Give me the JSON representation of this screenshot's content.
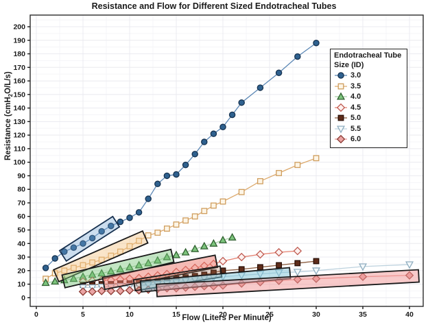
{
  "chart_data": {
    "type": "line",
    "title": "Resistance and Flow for Different Sized Endotracheal Tubes",
    "xlabel": "Flow (Liters Per Minute)",
    "ylabel": "Resistance (cmH2O/L/s)",
    "ylabel_pre": "Resistance (cmH",
    "ylabel_sub": "2",
    "ylabel_post": "O/L/s)",
    "xlim": [
      -0.66,
      41.47
    ],
    "ylim": [
      -6.4,
      208.6
    ],
    "xticks": [
      0,
      5,
      10,
      15,
      20,
      25,
      30,
      35,
      40
    ],
    "yticks": [
      0,
      10,
      20,
      30,
      40,
      50,
      60,
      70,
      80,
      90,
      100,
      110,
      120,
      130,
      140,
      150,
      160,
      170,
      180,
      190,
      200
    ],
    "grid": true,
    "legend": {
      "title_line1": "Endotracheal Tube",
      "title_line2": "Size (ID)",
      "position": "upper-right"
    },
    "series": [
      {
        "name": "3.0",
        "marker": "circle",
        "line": "#5b87b5",
        "fill": "#2f618f",
        "edge": "#16324f",
        "x": [
          1,
          2,
          3,
          4,
          5,
          6,
          7,
          8,
          9,
          10,
          11,
          12,
          13,
          14,
          15,
          16,
          17,
          18,
          19,
          20,
          21,
          22,
          24,
          26,
          28,
          30
        ],
        "y": [
          22,
          29,
          34,
          37,
          40,
          44,
          49,
          53,
          56,
          59,
          63,
          73,
          84,
          90,
          91,
          98,
          106,
          115,
          121,
          126,
          135,
          144,
          155,
          166,
          178,
          188
        ]
      },
      {
        "name": "3.5",
        "marker": "square",
        "line": "#ddaa6d",
        "fill": "#fdf5e6",
        "edge": "#cf9d5d",
        "x": [
          1,
          2,
          3,
          4,
          5,
          6,
          7,
          8,
          9,
          10,
          11,
          12,
          13,
          14,
          15,
          16,
          17,
          18,
          19,
          20,
          22,
          24,
          26,
          28,
          30
        ],
        "y": [
          14,
          18,
          20,
          22,
          24,
          26,
          28,
          31,
          34,
          38,
          42,
          46,
          48,
          51,
          54,
          57,
          60,
          64,
          68,
          71,
          78,
          86,
          92,
          98,
          103
        ]
      },
      {
        "name": "4.0",
        "marker": "triangle-up",
        "line": "#a8d2a8",
        "fill": "#7dc47d",
        "edge": "#2f5f2f",
        "x": [
          1,
          2,
          3,
          4,
          5,
          6,
          7,
          8,
          9,
          10,
          11,
          12,
          13,
          14,
          15,
          16,
          17,
          18,
          19,
          20,
          21
        ],
        "y": [
          11,
          12,
          13,
          14,
          15.5,
          17,
          18,
          19.5,
          21,
          22.5,
          24,
          25.5,
          27.5,
          30,
          31.5,
          33.5,
          36,
          38,
          40,
          42.5,
          44.5
        ]
      },
      {
        "name": "4.5",
        "marker": "diamond",
        "line": "#e5806f",
        "fill": "#fdf1ef",
        "edge": "#bf5a50",
        "x": [
          5,
          6,
          7,
          8,
          9,
          10,
          11,
          12,
          13,
          14,
          15,
          16,
          17,
          18,
          19,
          20,
          22,
          24,
          26,
          28
        ],
        "y": [
          12,
          12.5,
          13,
          13,
          13.5,
          14,
          14.5,
          15.5,
          16.5,
          17.5,
          19,
          20.5,
          22,
          23.5,
          25,
          27,
          30,
          32,
          33.5,
          34.5
        ]
      },
      {
        "name": "5.0",
        "marker": "square",
        "line": "#8a5a3c",
        "fill": "#5e2c1a",
        "edge": "#290f06",
        "x": [
          5,
          6,
          7,
          8,
          9,
          10,
          11,
          12,
          13,
          14,
          15,
          16,
          17,
          18,
          19,
          20,
          22,
          24,
          26,
          28,
          30
        ],
        "y": [
          9.5,
          9.5,
          10,
          10,
          10.5,
          10.5,
          11,
          11.5,
          12,
          13,
          14,
          15,
          16,
          17,
          18.5,
          20,
          21,
          22.5,
          24,
          25.5,
          27
        ]
      },
      {
        "name": "5.5",
        "marker": "triangle-down",
        "line": "#bdd2de",
        "fill": "#f4f9fb",
        "edge": "#8fadbf",
        "x": [
          5,
          6,
          7,
          8,
          9,
          10,
          11,
          12,
          13,
          14,
          15,
          16,
          17,
          18,
          19,
          20,
          22,
          24,
          26,
          28,
          30,
          35,
          40
        ],
        "y": [
          7.5,
          7.5,
          8,
          8,
          8.5,
          8.5,
          9,
          9.5,
          10,
          10.5,
          11.5,
          12.5,
          13.5,
          14.5,
          15,
          15.5,
          16.5,
          17.5,
          18.5,
          19,
          20,
          23,
          24.5
        ]
      },
      {
        "name": "6.0",
        "marker": "diamond",
        "line": "#e79490",
        "fill": "#e9a4a4",
        "edge": "#8c3a32",
        "x": [
          5,
          6,
          7,
          8,
          9,
          10,
          11,
          12,
          13,
          14,
          15,
          16,
          17,
          18,
          19,
          20,
          22,
          24,
          26,
          28,
          30,
          35,
          40
        ],
        "y": [
          4.5,
          4.5,
          5,
          5,
          5,
          5.5,
          5.5,
          6,
          6.5,
          7,
          7,
          7.5,
          8,
          8.5,
          8.5,
          9,
          10.5,
          11.5,
          12.5,
          13.5,
          14,
          15.5,
          16.5
        ]
      }
    ],
    "highlight_boxes": [
      {
        "series": "3.0",
        "x1": 3.1,
        "y1": 32,
        "x2": 8.3,
        "y2": 55,
        "half": 9,
        "fill": "rgba(110,160,210,0.35)",
        "stroke": "#16304f"
      },
      {
        "series": "3.5",
        "x1": 2.4,
        "y1": 17,
        "x2": 11.4,
        "y2": 44,
        "half": 9.5,
        "fill": "rgba(243,197,135,0.45)",
        "stroke": "#1a1a1a"
      },
      {
        "series": "4.0",
        "x1": 3.2,
        "y1": 12.5,
        "x2": 14.3,
        "y2": 30.5,
        "half": 9.5,
        "fill": "rgba(124,199,124,0.45)",
        "stroke": "#1a1a1a"
      },
      {
        "series": "4.5",
        "x1": 7.5,
        "y1": 11,
        "x2": 19,
        "y2": 26.5,
        "half": 9,
        "fill": "rgba(238,120,108,0.5)",
        "stroke": "#1a1a1a"
      },
      {
        "series": "5.0",
        "x1": 10.8,
        "y1": 9.5,
        "x2": 19.5,
        "y2": 19,
        "half": 8,
        "fill": "rgba(170,110,80,0.28)",
        "stroke": "#1a1a1a"
      },
      {
        "series": "5.5",
        "x1": 11.5,
        "y1": 8.5,
        "x2": 26.9,
        "y2": 18,
        "half": 8,
        "fill": "rgba(125,195,215,0.5)",
        "stroke": "#1a1a1a"
      },
      {
        "series": "6.0",
        "x1": 13.2,
        "y1": 5.5,
        "x2": 40.7,
        "y2": 16,
        "half": 9,
        "fill": "rgba(242,150,150,0.5)",
        "stroke": "#1a1a1a"
      }
    ],
    "colors": {
      "grid_major": "#ebebf0",
      "grid_minor": "#f5f5f8",
      "panel_border": "#2b2b2b",
      "tick": "#1a1a1a"
    }
  }
}
